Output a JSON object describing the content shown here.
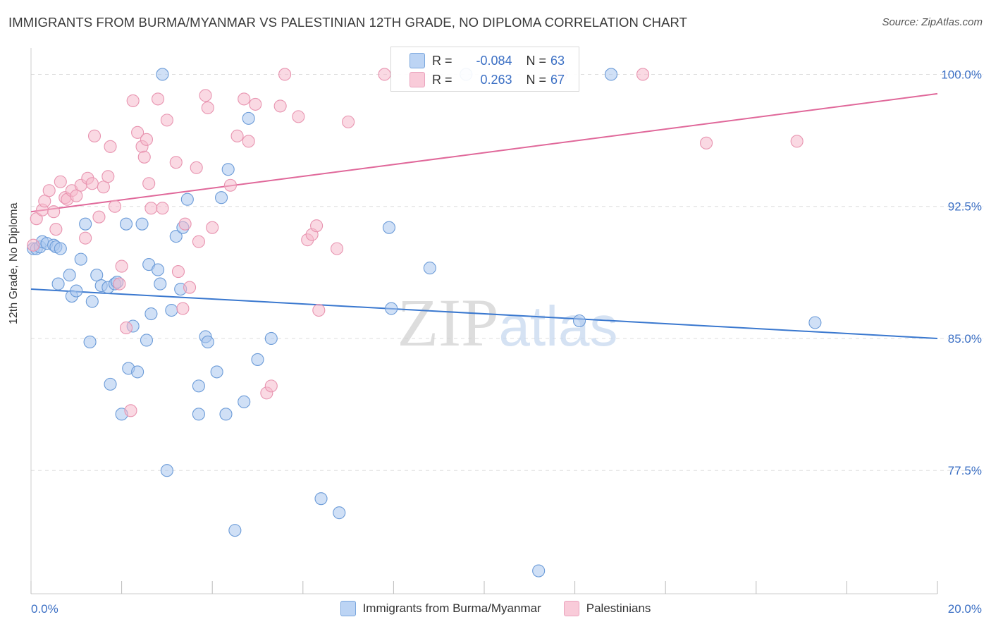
{
  "title": "IMMIGRANTS FROM BURMA/MYANMAR VS PALESTINIAN 12TH GRADE, NO DIPLOMA CORRELATION CHART",
  "source": "Source: ZipAtlas.com",
  "watermark": "ZIPatlas",
  "stats": {
    "r_label": "R =",
    "n_label": "N =",
    "rows": [
      {
        "r": "-0.084",
        "n": "63"
      },
      {
        "r": "0.263",
        "n": "67"
      }
    ]
  },
  "legend": [
    "Immigrants from Burma/Myanmar",
    "Palestinians"
  ],
  "colors": {
    "blue_fill": "#a9c7ef",
    "blue_stroke": "#6b9bd8",
    "blue_line": "#3a78cf",
    "pink_fill": "#f5b9cc",
    "pink_stroke": "#e894b0",
    "pink_line": "#e0689a",
    "axis_label": "#3b6fc4"
  },
  "chart_data": {
    "type": "scatter",
    "ylabel": "12th Grade, No Diploma",
    "xlim": [
      0.0,
      20.0
    ],
    "ylim": [
      70.5,
      101.5
    ],
    "x_tick_labels": [
      "0.0%",
      "20.0%"
    ],
    "y_ticks": [
      77.5,
      85.0,
      92.5,
      100.0
    ],
    "y_tick_labels": [
      "77.5%",
      "85.0%",
      "92.5%",
      "100.0%"
    ],
    "grid": "horizontal dashed",
    "legend_position": "bottom",
    "series": [
      {
        "name": "Immigrants from Burma/Myanmar",
        "r": -0.084,
        "n": 63,
        "trend": {
          "x": [
            0.0,
            20.0
          ],
          "y": [
            87.8,
            85.0
          ]
        },
        "points": [
          [
            0.05,
            90.1
          ],
          [
            0.12,
            90.1
          ],
          [
            0.2,
            90.2
          ],
          [
            0.25,
            90.5
          ],
          [
            0.35,
            90.4
          ],
          [
            0.5,
            90.3
          ],
          [
            0.55,
            90.2
          ],
          [
            0.65,
            90.1
          ],
          [
            0.6,
            88.1
          ],
          [
            0.85,
            88.6
          ],
          [
            0.9,
            87.4
          ],
          [
            1.0,
            87.7
          ],
          [
            1.1,
            89.5
          ],
          [
            1.2,
            91.5
          ],
          [
            1.3,
            84.8
          ],
          [
            1.35,
            87.1
          ],
          [
            1.45,
            88.6
          ],
          [
            1.55,
            88.0
          ],
          [
            1.7,
            87.9
          ],
          [
            1.75,
            82.4
          ],
          [
            1.85,
            88.1
          ],
          [
            1.9,
            88.2
          ],
          [
            2.0,
            80.7
          ],
          [
            2.1,
            91.5
          ],
          [
            2.15,
            83.3
          ],
          [
            2.25,
            85.7
          ],
          [
            2.35,
            83.1
          ],
          [
            2.45,
            91.5
          ],
          [
            2.55,
            84.9
          ],
          [
            2.6,
            89.2
          ],
          [
            2.65,
            86.4
          ],
          [
            2.8,
            88.9
          ],
          [
            2.85,
            88.1
          ],
          [
            2.9,
            100.0
          ],
          [
            3.0,
            77.5
          ],
          [
            3.1,
            86.6
          ],
          [
            3.2,
            90.8
          ],
          [
            3.3,
            87.8
          ],
          [
            3.35,
            91.3
          ],
          [
            3.45,
            92.9
          ],
          [
            3.7,
            82.3
          ],
          [
            3.7,
            80.7
          ],
          [
            3.85,
            85.1
          ],
          [
            3.9,
            84.8
          ],
          [
            4.1,
            83.1
          ],
          [
            4.2,
            93.0
          ],
          [
            4.3,
            80.7
          ],
          [
            4.35,
            94.6
          ],
          [
            4.5,
            74.1
          ],
          [
            4.7,
            81.4
          ],
          [
            4.8,
            97.5
          ],
          [
            5.0,
            83.8
          ],
          [
            5.3,
            85.0
          ],
          [
            6.4,
            75.9
          ],
          [
            6.8,
            75.1
          ],
          [
            7.9,
            91.3
          ],
          [
            7.95,
            86.7
          ],
          [
            8.8,
            89.0
          ],
          [
            11.2,
            71.8
          ],
          [
            12.1,
            86.0
          ],
          [
            12.8,
            100.0
          ],
          [
            17.3,
            85.9
          ],
          [
            9.6,
            100.0
          ]
        ]
      },
      {
        "name": "Palestinians",
        "r": 0.263,
        "n": 67,
        "trend": {
          "x": [
            0.0,
            20.0
          ],
          "y": [
            92.2,
            98.9
          ]
        },
        "points": [
          [
            0.05,
            90.3
          ],
          [
            0.12,
            91.8
          ],
          [
            0.25,
            92.3
          ],
          [
            0.3,
            92.8
          ],
          [
            0.4,
            93.4
          ],
          [
            0.5,
            92.2
          ],
          [
            0.55,
            91.2
          ],
          [
            0.65,
            93.9
          ],
          [
            0.75,
            93.0
          ],
          [
            0.8,
            92.9
          ],
          [
            0.9,
            93.4
          ],
          [
            1.0,
            93.1
          ],
          [
            1.1,
            93.7
          ],
          [
            1.2,
            90.7
          ],
          [
            1.25,
            94.1
          ],
          [
            1.35,
            93.8
          ],
          [
            1.4,
            96.5
          ],
          [
            1.5,
            91.9
          ],
          [
            1.6,
            93.6
          ],
          [
            1.7,
            94.2
          ],
          [
            1.75,
            95.9
          ],
          [
            1.85,
            92.5
          ],
          [
            1.95,
            88.1
          ],
          [
            2.0,
            89.1
          ],
          [
            2.1,
            85.6
          ],
          [
            2.2,
            80.9
          ],
          [
            2.25,
            98.5
          ],
          [
            2.35,
            96.7
          ],
          [
            2.45,
            95.9
          ],
          [
            2.5,
            95.3
          ],
          [
            2.55,
            96.3
          ],
          [
            2.6,
            93.8
          ],
          [
            2.65,
            92.4
          ],
          [
            2.8,
            98.6
          ],
          [
            2.9,
            92.4
          ],
          [
            3.0,
            97.4
          ],
          [
            3.2,
            95.0
          ],
          [
            3.25,
            88.8
          ],
          [
            3.35,
            86.7
          ],
          [
            3.4,
            91.5
          ],
          [
            3.5,
            87.9
          ],
          [
            3.65,
            94.7
          ],
          [
            3.7,
            90.5
          ],
          [
            3.85,
            98.8
          ],
          [
            3.9,
            98.1
          ],
          [
            4.0,
            91.3
          ],
          [
            4.4,
            93.7
          ],
          [
            4.55,
            96.5
          ],
          [
            4.7,
            98.6
          ],
          [
            4.8,
            96.2
          ],
          [
            4.95,
            98.3
          ],
          [
            5.2,
            81.9
          ],
          [
            5.3,
            82.3
          ],
          [
            5.5,
            98.2
          ],
          [
            5.6,
            100.0
          ],
          [
            5.9,
            97.6
          ],
          [
            6.1,
            90.6
          ],
          [
            6.2,
            90.9
          ],
          [
            6.3,
            91.4
          ],
          [
            6.35,
            86.6
          ],
          [
            6.75,
            90.1
          ],
          [
            7.0,
            97.3
          ],
          [
            7.8,
            100.0
          ],
          [
            11.7,
            100.0
          ],
          [
            13.5,
            100.0
          ],
          [
            14.9,
            96.1
          ],
          [
            16.9,
            96.2
          ]
        ]
      }
    ]
  }
}
